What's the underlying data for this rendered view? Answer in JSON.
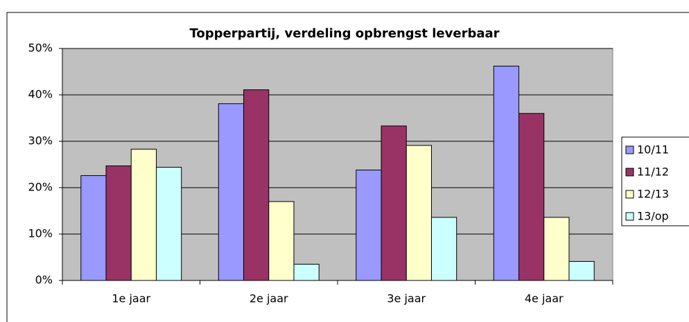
{
  "chart_data": {
    "type": "bar",
    "title": "Topperpartij, verdeling opbrengst leverbaar",
    "categories": [
      "1e jaar",
      "2e jaar",
      "3e jaar",
      "4e jaar"
    ],
    "series": [
      {
        "name": "10/11",
        "color": "#9999ff",
        "values": [
          22.6,
          38.1,
          23.8,
          46.2
        ]
      },
      {
        "name": "11/12",
        "color": "#993366",
        "values": [
          24.7,
          41.1,
          33.3,
          36.0
        ]
      },
      {
        "name": "12/13",
        "color": "#ffffcc",
        "values": [
          28.3,
          17.0,
          29.1,
          13.6
        ]
      },
      {
        "name": "13/op",
        "color": "#ccffff",
        "values": [
          24.4,
          3.5,
          13.6,
          4.1
        ]
      }
    ],
    "ylim": [
      0,
      50
    ],
    "yticks": [
      {
        "value": 0,
        "label": "0%"
      },
      {
        "value": 10,
        "label": "10%"
      },
      {
        "value": 20,
        "label": "20%"
      },
      {
        "value": 30,
        "label": "30%"
      },
      {
        "value": 40,
        "label": "40%"
      },
      {
        "value": 50,
        "label": "50%"
      }
    ],
    "grid": true,
    "legend": "right",
    "plot_background": "#c0c0c0"
  }
}
